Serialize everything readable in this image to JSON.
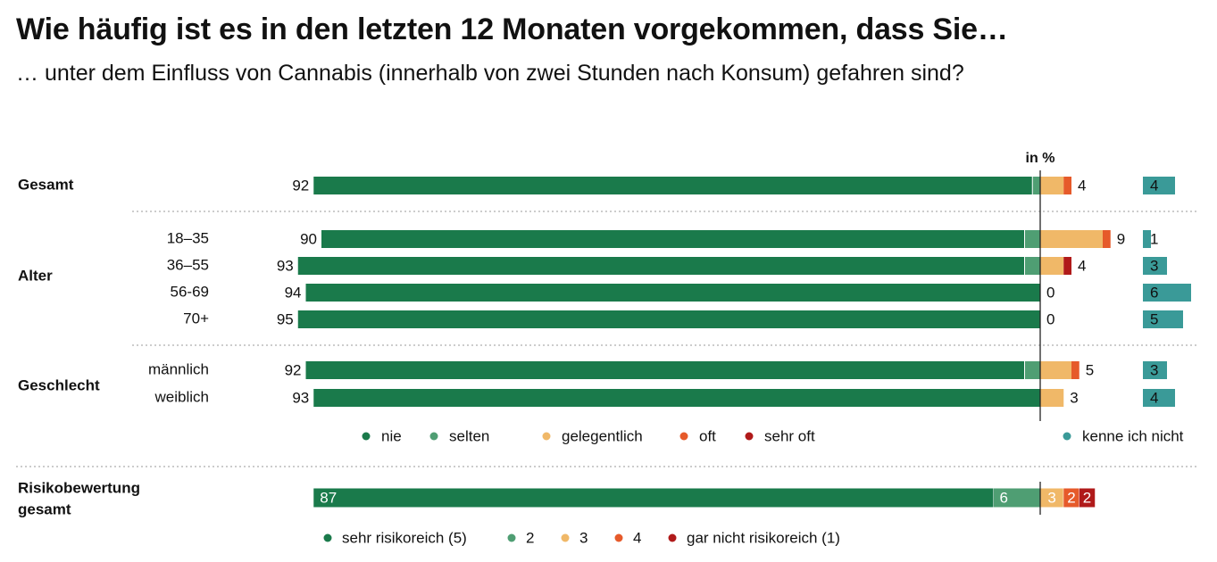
{
  "header": {
    "title": "Wie häufig ist es in den letzten 12 Monaten vorgekommen, dass Sie…",
    "subtitle": "… unter dem Einfluss von Cannabis (innerhalb von zwei Stunden nach Konsum) gefahren sind?"
  },
  "chart_data": {
    "type": "bar",
    "orientation": "horizontal",
    "stacked": "diverging",
    "unit_label": "in %",
    "colors": {
      "nie": "#1a7a4b",
      "selten": "#4f9e73",
      "gelegentlich": "#f0b868",
      "oft": "#e65a2a",
      "sehr_oft": "#b01a1a",
      "kenne_ich_nicht": "#3a9a98"
    },
    "groups": [
      {
        "label": "Gesamt",
        "rows": [
          {
            "label": "",
            "nie": 92,
            "selten": 1,
            "gelegentlich": 3,
            "oft": 1,
            "sehr_oft": 0,
            "kenne_ich_nicht": 4,
            "left_label": "92",
            "right_label": "4",
            "kenne_label": "4"
          }
        ]
      },
      {
        "label": "Alter",
        "rows": [
          {
            "label": "18–35",
            "nie": 90,
            "selten": 2,
            "gelegentlich": 8,
            "oft": 1,
            "sehr_oft": 0,
            "kenne_ich_nicht": 1,
            "left_label": "90",
            "right_label": "9",
            "kenne_label": "1"
          },
          {
            "label": "36–55",
            "nie": 93,
            "selten": 2,
            "gelegentlich": 3,
            "oft": 0,
            "sehr_oft": 1,
            "kenne_ich_nicht": 3,
            "left_label": "93",
            "right_label": "4",
            "kenne_label": "3"
          },
          {
            "label": "56-69",
            "nie": 94,
            "selten": 0,
            "gelegentlich": 0,
            "oft": 0,
            "sehr_oft": 0,
            "kenne_ich_nicht": 6,
            "left_label": "94",
            "right_label": "0",
            "kenne_label": "6"
          },
          {
            "label": "70+",
            "nie": 95,
            "selten": 0,
            "gelegentlich": 0,
            "oft": 0,
            "sehr_oft": 0,
            "kenne_ich_nicht": 5,
            "left_label": "95",
            "right_label": "0",
            "kenne_label": "5"
          }
        ]
      },
      {
        "label": "Geschlecht",
        "rows": [
          {
            "label": "männlich",
            "nie": 92,
            "selten": 2,
            "gelegentlich": 4,
            "oft": 1,
            "sehr_oft": 0,
            "kenne_ich_nicht": 3,
            "left_label": "92",
            "right_label": "5",
            "kenne_label": "3"
          },
          {
            "label": "weiblich",
            "nie": 93,
            "selten": 0,
            "gelegentlich": 3,
            "oft": 0,
            "sehr_oft": 0,
            "kenne_ich_nicht": 4,
            "left_label": "93",
            "right_label": "3",
            "kenne_label": "4"
          }
        ]
      }
    ],
    "legend": [
      {
        "key": "nie",
        "label": "nie"
      },
      {
        "key": "selten",
        "label": "selten"
      },
      {
        "key": "gelegentlich",
        "label": "gelegentlich"
      },
      {
        "key": "oft",
        "label": "oft"
      },
      {
        "key": "sehr_oft",
        "label": "sehr oft"
      },
      {
        "key": "kenne_ich_nicht",
        "label": "kenne ich nicht"
      }
    ],
    "risk": {
      "label": "Risikobewertung gesamt",
      "label_lines": [
        "Risikobewertung",
        "gesamt"
      ],
      "segments": [
        {
          "name": "sehr risikoreich (5)",
          "value": 87,
          "color": "#1a7a4b",
          "side": "left"
        },
        {
          "name": "2",
          "value": 6,
          "color": "#4f9e73",
          "side": "left"
        },
        {
          "name": "3",
          "value": 3,
          "color": "#f0b868",
          "side": "right"
        },
        {
          "name": "4",
          "value": 2,
          "color": "#e65a2a",
          "side": "right"
        },
        {
          "name": "gar nicht risikoreich (1)",
          "value": 2,
          "color": "#b01a1a",
          "side": "right"
        }
      ]
    }
  }
}
